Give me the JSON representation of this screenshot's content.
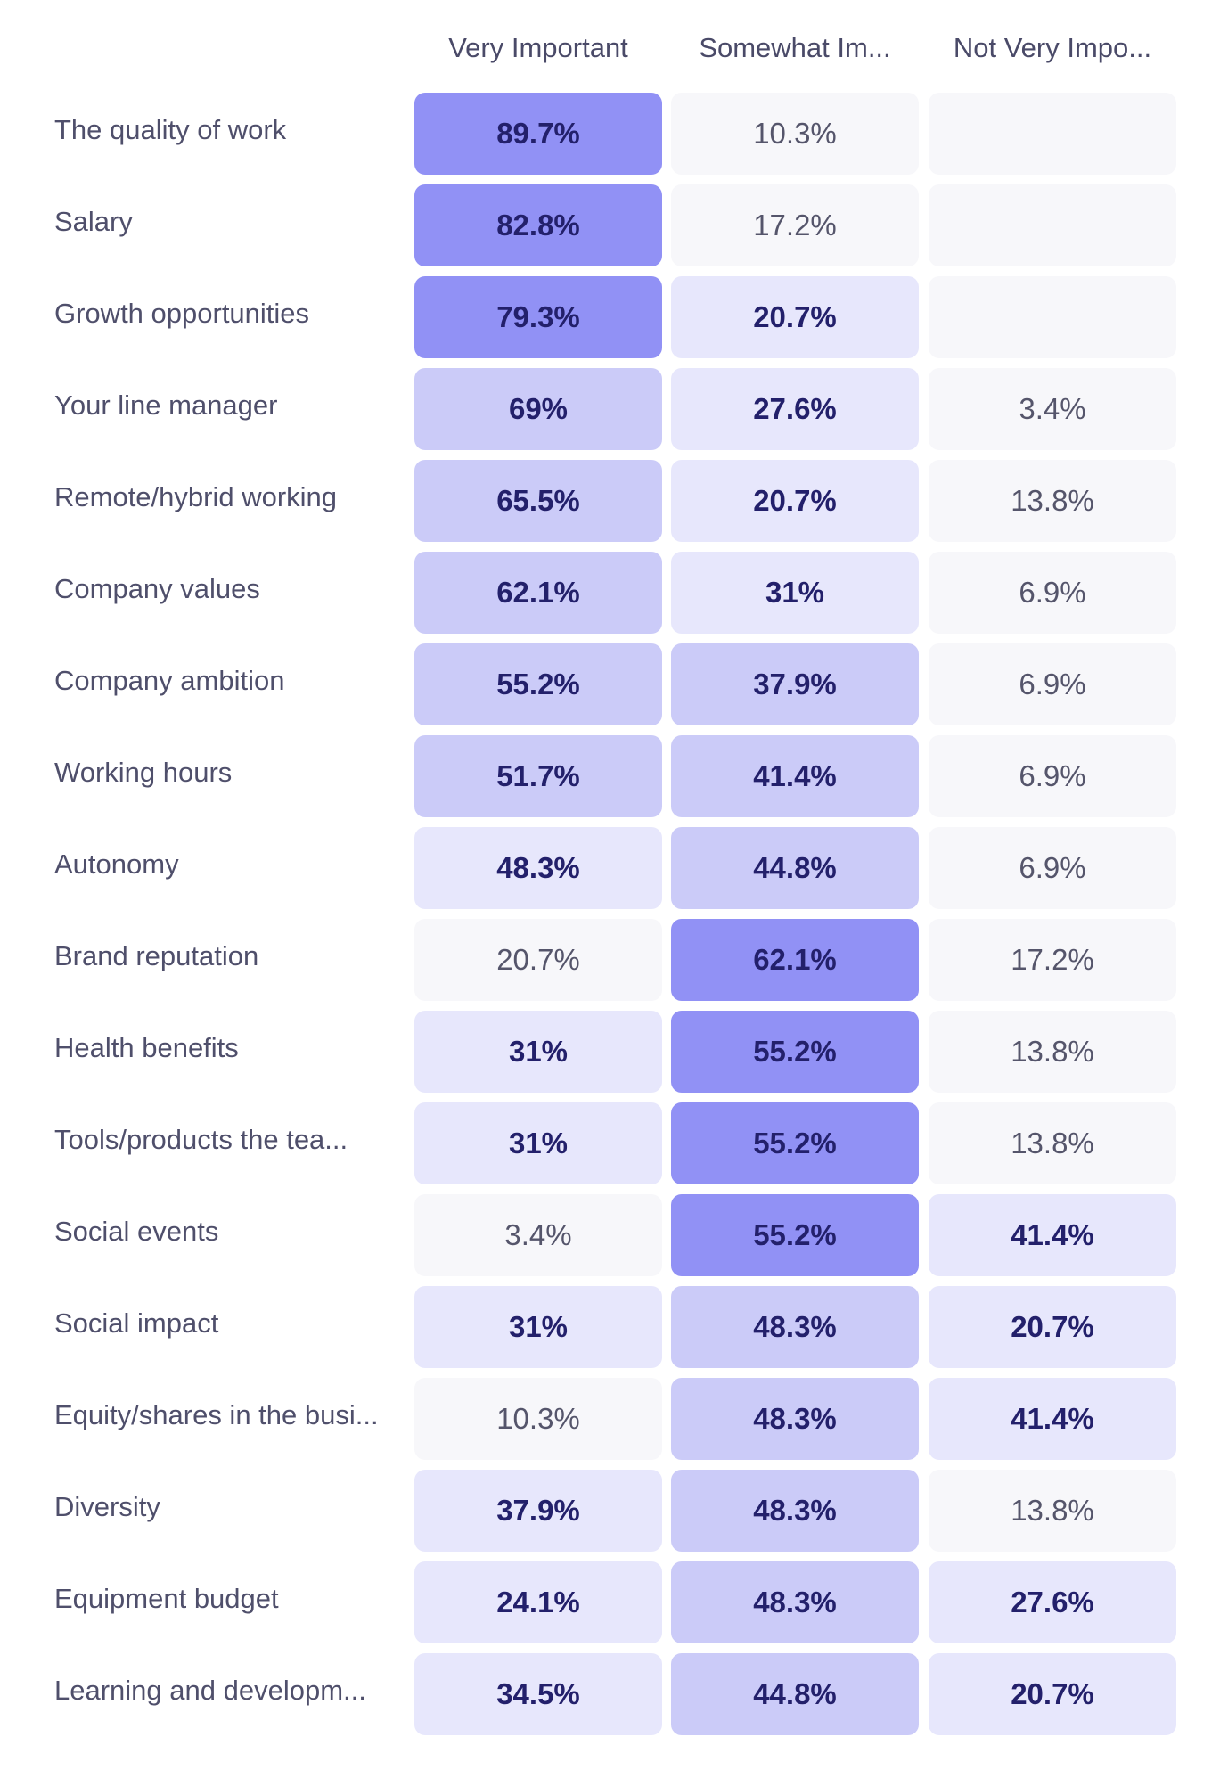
{
  "chart_data": {
    "type": "heatmap",
    "columns": [
      "Very Important",
      "Somewhat Im...",
      "Not Very Impo..."
    ],
    "rows": [
      {
        "label": "The quality of work",
        "values": [
          89.7,
          10.3,
          null
        ],
        "display": [
          "89.7%",
          "10.3%",
          ""
        ]
      },
      {
        "label": "Salary",
        "values": [
          82.8,
          17.2,
          null
        ],
        "display": [
          "82.8%",
          "17.2%",
          ""
        ]
      },
      {
        "label": "Growth opportunities",
        "values": [
          79.3,
          20.7,
          null
        ],
        "display": [
          "79.3%",
          "20.7%",
          ""
        ]
      },
      {
        "label": "Your line manager",
        "values": [
          69,
          27.6,
          3.4
        ],
        "display": [
          "69%",
          "27.6%",
          "3.4%"
        ]
      },
      {
        "label": "Remote/hybrid working",
        "values": [
          65.5,
          20.7,
          13.8
        ],
        "display": [
          "65.5%",
          "20.7%",
          "13.8%"
        ]
      },
      {
        "label": "Company values",
        "values": [
          62.1,
          31,
          6.9
        ],
        "display": [
          "62.1%",
          "31%",
          "6.9%"
        ]
      },
      {
        "label": "Company ambition",
        "values": [
          55.2,
          37.9,
          6.9
        ],
        "display": [
          "55.2%",
          "37.9%",
          "6.9%"
        ]
      },
      {
        "label": "Working hours",
        "values": [
          51.7,
          41.4,
          6.9
        ],
        "display": [
          "51.7%",
          "41.4%",
          "6.9%"
        ]
      },
      {
        "label": "Autonomy",
        "values": [
          48.3,
          44.8,
          6.9
        ],
        "display": [
          "48.3%",
          "44.8%",
          "6.9%"
        ]
      },
      {
        "label": "Brand reputation",
        "values": [
          20.7,
          62.1,
          17.2
        ],
        "display": [
          "20.7%",
          "62.1%",
          "17.2%"
        ]
      },
      {
        "label": "Health benefits",
        "values": [
          31,
          55.2,
          13.8
        ],
        "display": [
          "31%",
          "55.2%",
          "13.8%"
        ]
      },
      {
        "label": "Tools/products the tea...",
        "values": [
          31,
          55.2,
          13.8
        ],
        "display": [
          "31%",
          "55.2%",
          "13.8%"
        ]
      },
      {
        "label": "Social events",
        "values": [
          3.4,
          55.2,
          41.4
        ],
        "display": [
          "3.4%",
          "55.2%",
          "41.4%"
        ]
      },
      {
        "label": "Social impact",
        "values": [
          31,
          48.3,
          20.7
        ],
        "display": [
          "31%",
          "48.3%",
          "20.7%"
        ]
      },
      {
        "label": "Equity/shares in the busi...",
        "values": [
          10.3,
          48.3,
          41.4
        ],
        "display": [
          "10.3%",
          "48.3%",
          "41.4%"
        ]
      },
      {
        "label": "Diversity",
        "values": [
          37.9,
          48.3,
          13.8
        ],
        "display": [
          "37.9%",
          "48.3%",
          "13.8%"
        ]
      },
      {
        "label": "Equipment budget",
        "values": [
          24.1,
          48.3,
          27.6
        ],
        "display": [
          "24.1%",
          "48.3%",
          "27.6%"
        ]
      },
      {
        "label": "Learning and developm...",
        "values": [
          34.5,
          44.8,
          20.7
        ],
        "display": [
          "34.5%",
          "44.8%",
          "20.7%"
        ]
      }
    ],
    "colors": {
      "empty": "#f7f7fa",
      "low": "#e7e7fc",
      "mid": "#cbcbf8",
      "high": "#9191f5",
      "text_bold": "#23206b",
      "text_light": "#55556b"
    }
  }
}
